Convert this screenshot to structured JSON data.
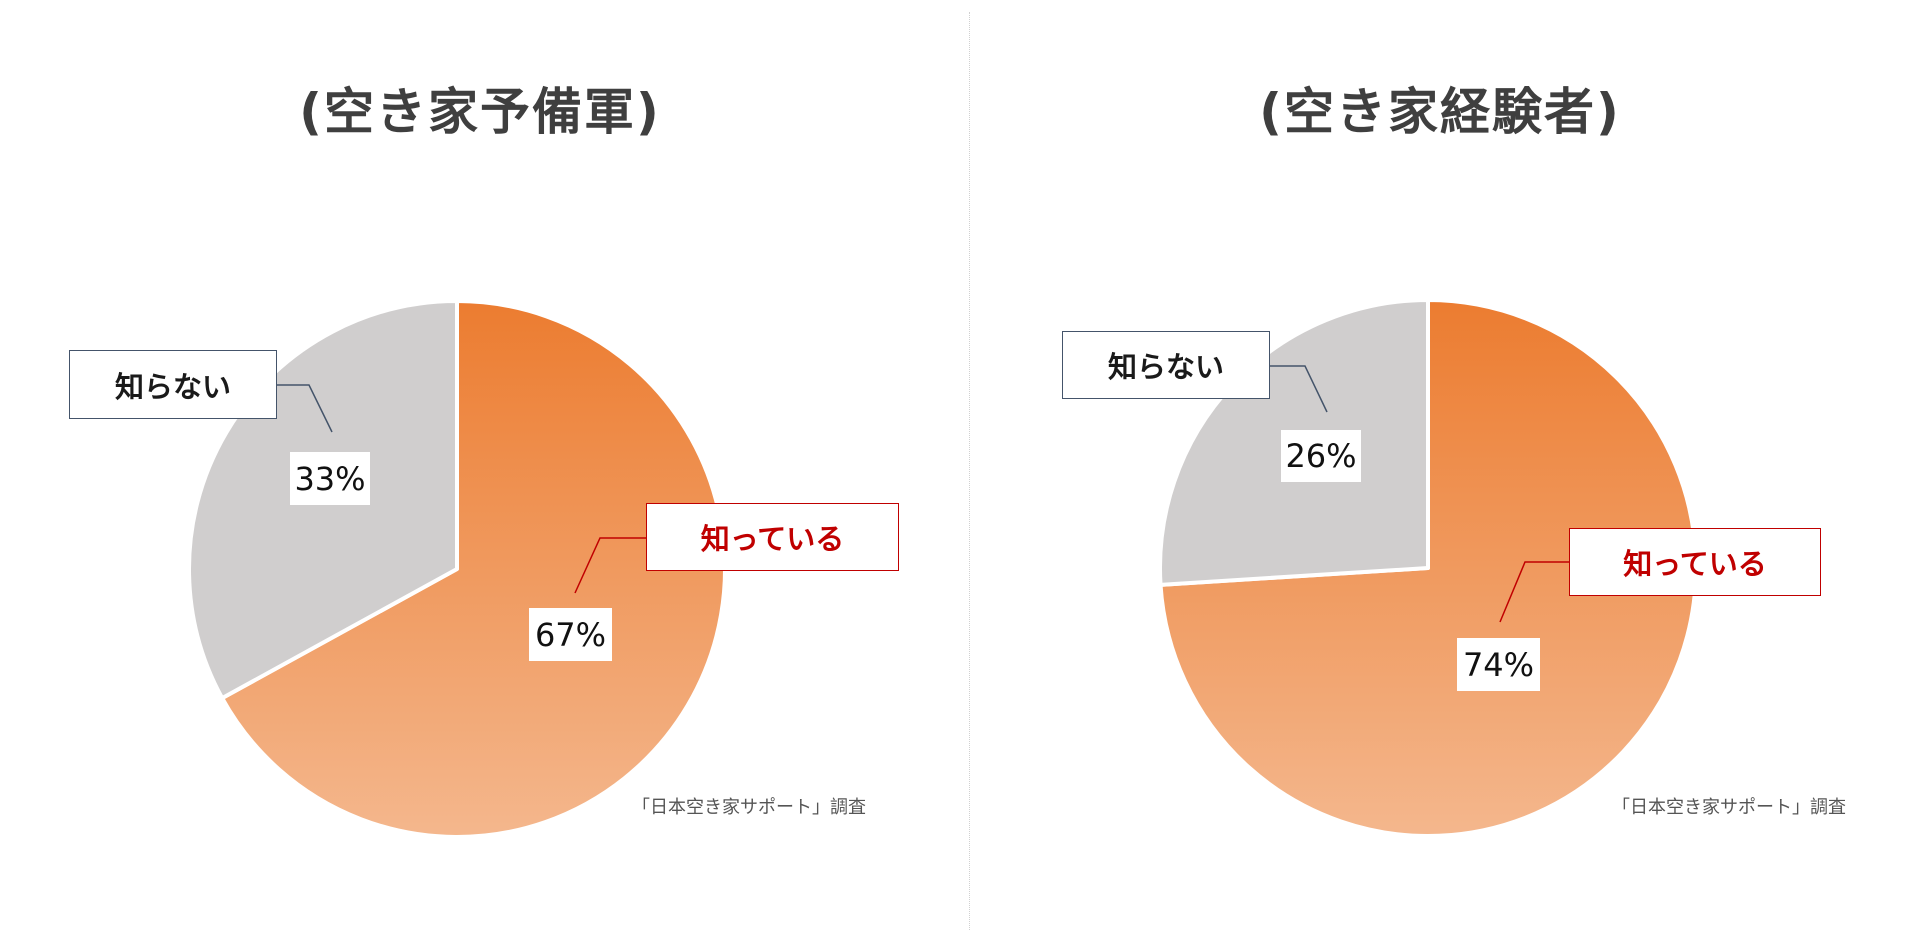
{
  "chart_data": [
    {
      "type": "pie",
      "title": "(空き家予備軍)",
      "slices": [
        {
          "label": "知っている",
          "value": 67,
          "value_label": "67%",
          "color": "#ed7d31"
        },
        {
          "label": "知らない",
          "value": 33,
          "value_label": "33%",
          "color": "#d0cece"
        }
      ],
      "source": "「日本空き家サポート」調査"
    },
    {
      "type": "pie",
      "title": "(空き家経験者)",
      "slices": [
        {
          "label": "知っている",
          "value": 74,
          "value_label": "74%",
          "color": "#ed7d31"
        },
        {
          "label": "知らない",
          "value": 26,
          "value_label": "26%",
          "color": "#d0cece"
        }
      ],
      "source": "「日本空き家サポート」調査"
    }
  ]
}
